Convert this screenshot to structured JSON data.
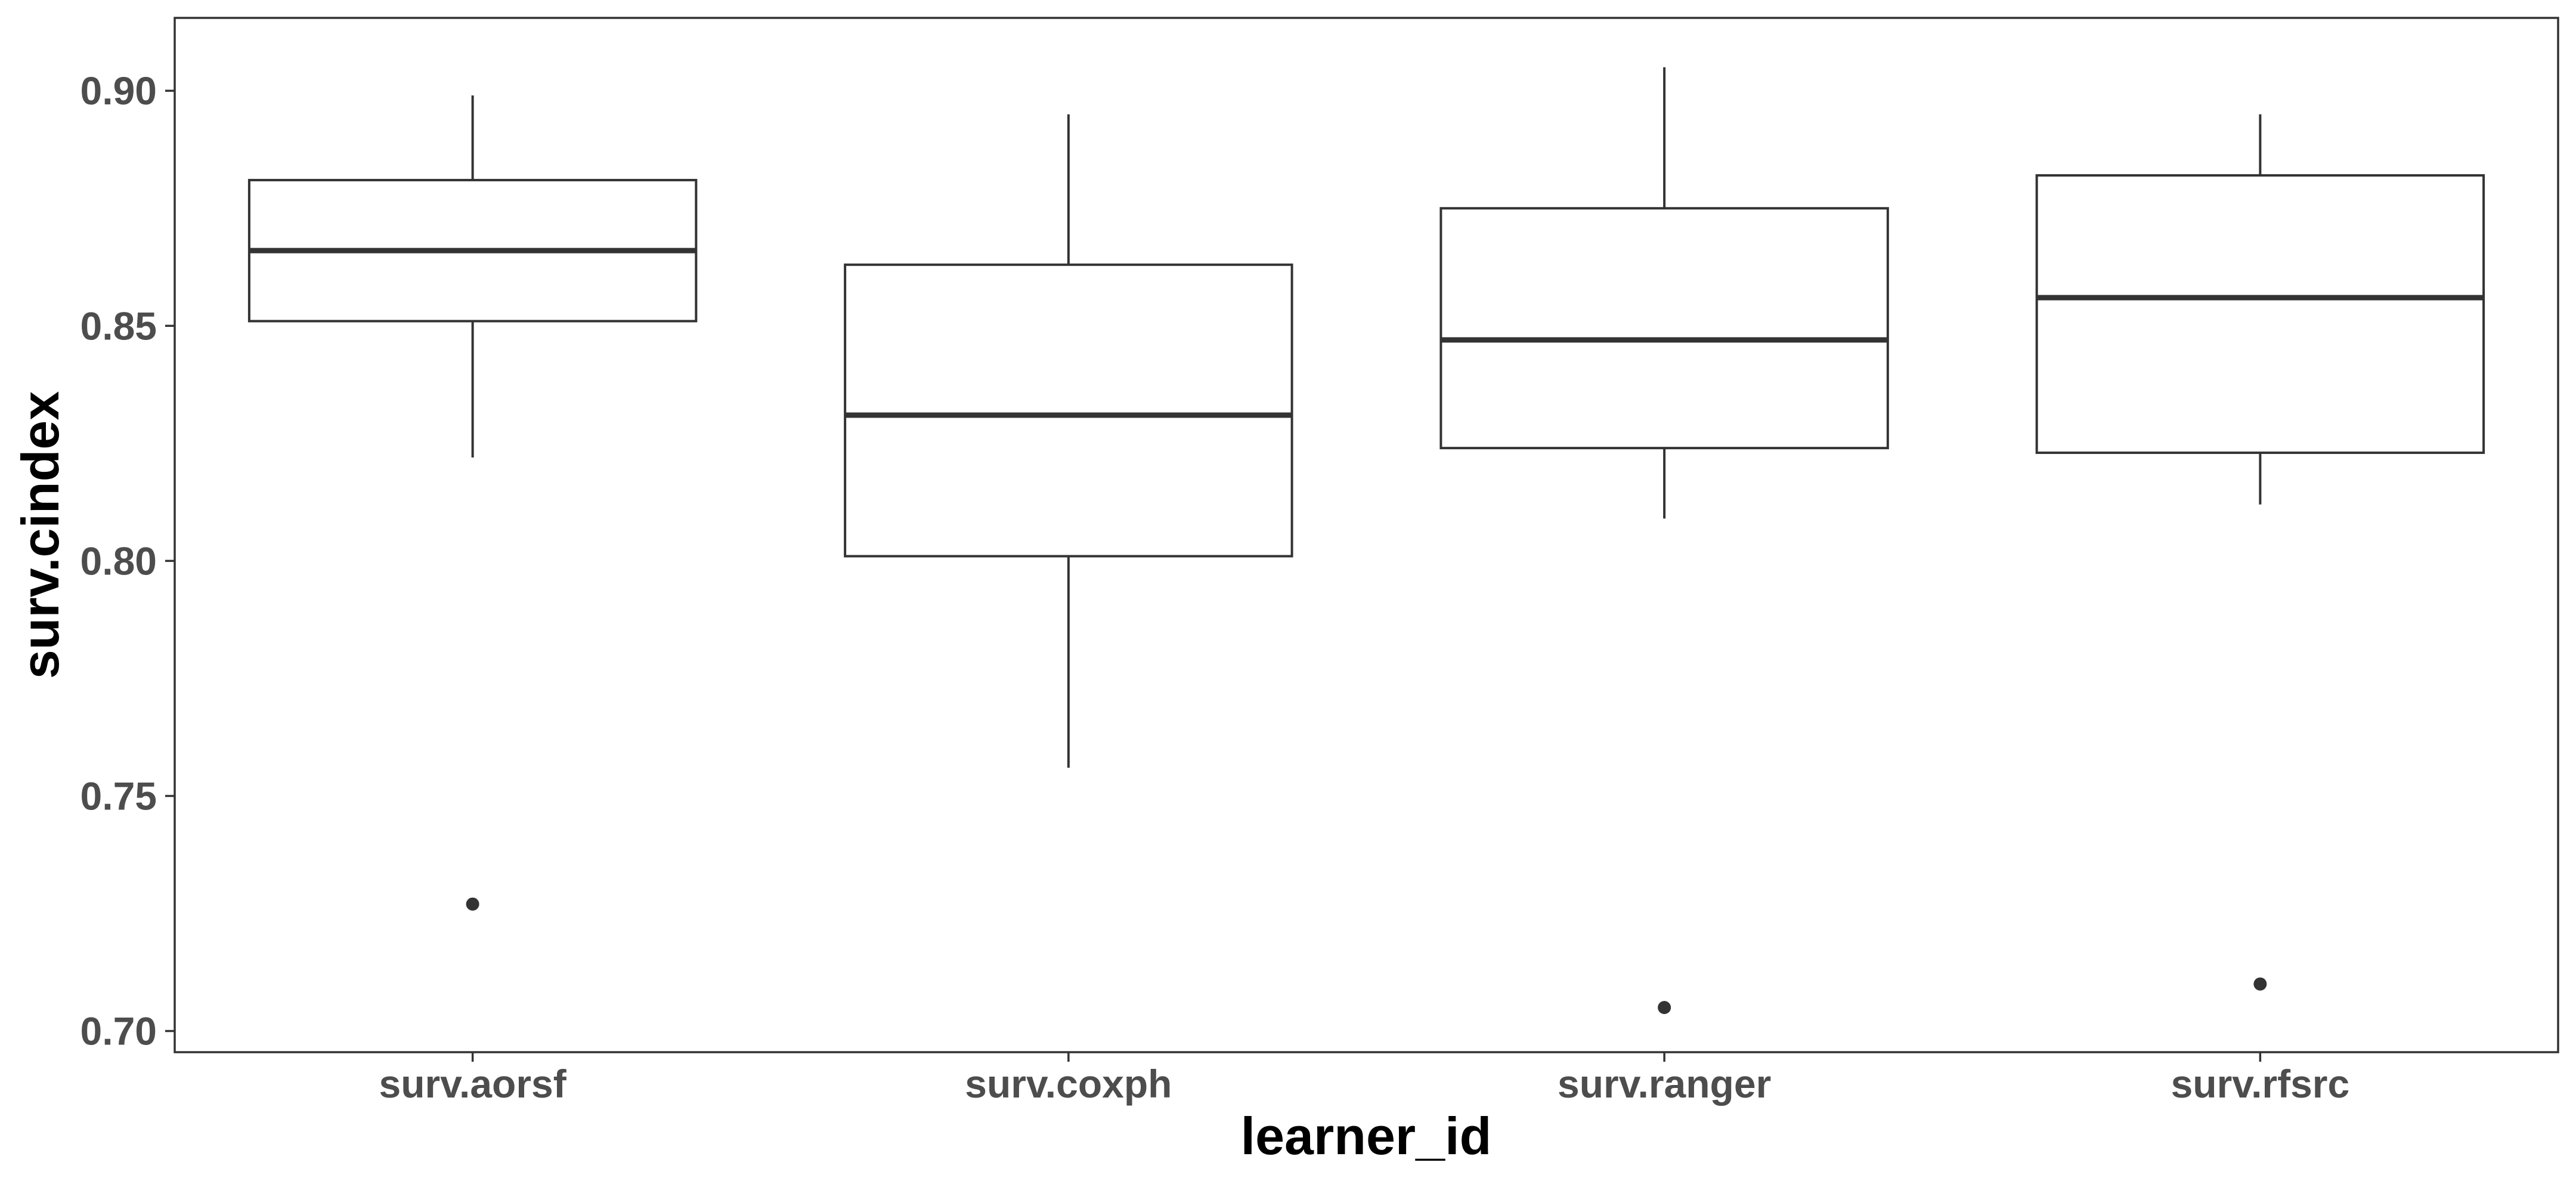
{
  "chart_data": {
    "type": "boxplot",
    "title": "",
    "xlabel": "learner_id",
    "ylabel": "surv.cindex",
    "ylim": [
      0.6955,
      0.9155
    ],
    "yticks": [
      0.7,
      0.75,
      0.8,
      0.85,
      0.9
    ],
    "ytick_labels": [
      "0.70",
      "0.75",
      "0.80",
      "0.85",
      "0.90"
    ],
    "grid": false,
    "legend": "none",
    "categories": [
      "surv.aorsf",
      "surv.coxph",
      "surv.ranger",
      "surv.rfsrc"
    ],
    "boxes": [
      {
        "category": "surv.aorsf",
        "whisker_low": 0.822,
        "q1": 0.851,
        "median": 0.866,
        "q3": 0.881,
        "whisker_high": 0.899,
        "outliers": [
          0.727
        ]
      },
      {
        "category": "surv.coxph",
        "whisker_low": 0.756,
        "q1": 0.801,
        "median": 0.831,
        "q3": 0.863,
        "whisker_high": 0.895,
        "outliers": []
      },
      {
        "category": "surv.ranger",
        "whisker_low": 0.809,
        "q1": 0.824,
        "median": 0.847,
        "q3": 0.875,
        "whisker_high": 0.905,
        "outliers": [
          0.705
        ]
      },
      {
        "category": "surv.rfsrc",
        "whisker_low": 0.812,
        "q1": 0.823,
        "median": 0.856,
        "q3": 0.882,
        "whisker_high": 0.895,
        "outliers": [
          0.71
        ]
      }
    ],
    "colors": {
      "box_stroke": "#333333",
      "box_fill": "#ffffff",
      "outlier": "#333333",
      "panel_border": "#333333",
      "tick_label": "#4d4d4d",
      "axis_title": "#000000"
    }
  }
}
